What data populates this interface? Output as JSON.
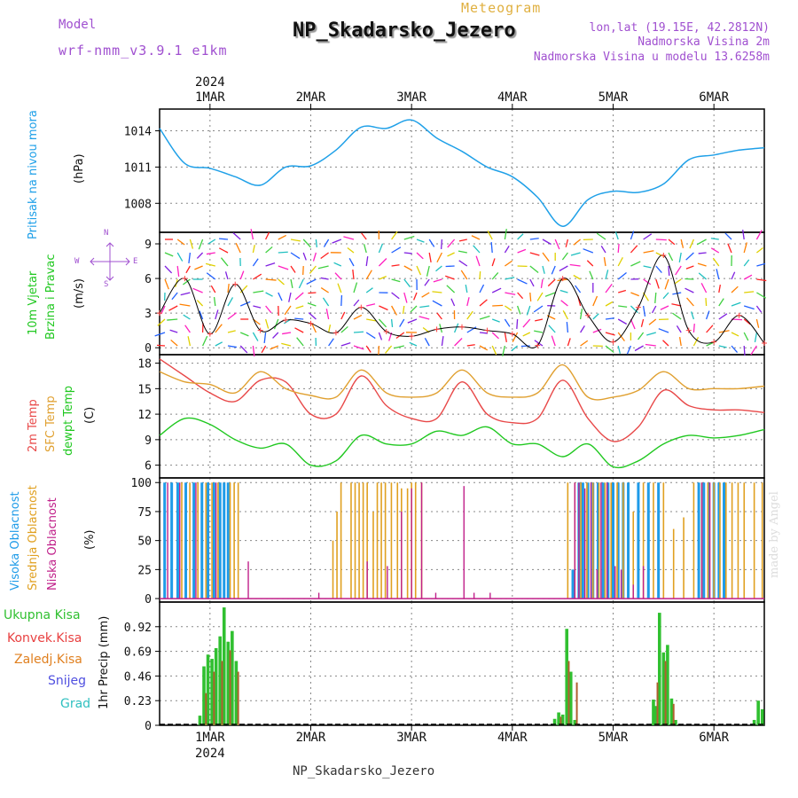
{
  "header": {
    "meteogram_label": "Meteogram",
    "model_label": "Model",
    "model_value": "wrf-nmm_v3.9.1 e1km",
    "station": "NP_Skadarsko_Jezero",
    "lonlat": "lon,lat (19.15E, 42.2812N)",
    "altitude": "Nadmorska Visina 2m",
    "model_altitude": "Nadmorska Visina u modelu 13.6258m",
    "footer": "NP_Skadarsko_Jezero",
    "made_by": "made by Angel"
  },
  "colors": {
    "pressure": "#1fa0e8",
    "temp2m": "#e84848",
    "sfc": "#e0a030",
    "dew": "#20c820",
    "high_cloud": "#1e9be8",
    "mid_cloud": "#e0a020",
    "low_cloud": "#c0208a",
    "total_precip": "#30c030",
    "conv_precip": "#e84040",
    "ice_precip": "#e08020",
    "snow": "#5050e0",
    "grad": "#30c0c0",
    "label_purple": "#a050d0"
  },
  "axes": {
    "date_ticks": [
      "1MAR",
      "2MAR",
      "3MAR",
      "4MAR",
      "5MAR",
      "6MAR"
    ],
    "year": "2024",
    "x_domain_days": [
      0.5,
      6.5
    ]
  },
  "chart_data": [
    {
      "type": "line",
      "panel": "pressure",
      "label": "Pritisak na nivou mora",
      "unit": "(hPa)",
      "yticks": [
        1008,
        1011,
        1014
      ],
      "ylim": [
        1005.6,
        1015.8
      ],
      "series": [
        {
          "name": "Pritisak na nivou mora",
          "x": [
            "2024-02-29 12:00",
            "2024-02-29 18:00",
            "2024-03-01 00:00",
            "2024-03-01 06:00",
            "2024-03-01 12:00",
            "2024-03-01 18:00",
            "2024-03-02 00:00",
            "2024-03-02 06:00",
            "2024-03-02 12:00",
            "2024-03-02 18:00",
            "2024-03-03 00:00",
            "2024-03-03 06:00",
            "2024-03-03 12:00",
            "2024-03-03 18:00",
            "2024-03-04 00:00",
            "2024-03-04 06:00",
            "2024-03-04 12:00",
            "2024-03-04 18:00",
            "2024-03-05 00:00",
            "2024-03-05 06:00",
            "2024-03-05 12:00",
            "2024-03-05 18:00",
            "2024-03-06 00:00",
            "2024-03-06 06:00",
            "2024-03-06 12:00"
          ],
          "values": [
            1014.2,
            1011.3,
            1010.9,
            1010.2,
            1009.5,
            1011.0,
            1011.1,
            1012.4,
            1014.3,
            1014.2,
            1014.9,
            1013.4,
            1012.3,
            1011.0,
            1010.2,
            1008.5,
            1006.1,
            1008.3,
            1009.0,
            1008.9,
            1009.6,
            1011.6,
            1012.0,
            1012.4,
            1012.6
          ]
        }
      ]
    },
    {
      "type": "line",
      "panel": "wind",
      "label_line1": "10m Vjetar",
      "label_line2": "Brzina i Pravac",
      "unit": "(m/s)",
      "compass": "N",
      "compass_w": "W",
      "compass_e": "E",
      "compass_s": "S",
      "yticks": [
        0,
        3,
        6,
        9
      ],
      "ylim": [
        -0.6,
        10
      ],
      "series": [
        {
          "name": "Brzina",
          "x": [
            "2024-02-29 12:00",
            "2024-02-29 18:00",
            "2024-03-01 00:00",
            "2024-03-01 06:00",
            "2024-03-01 12:00",
            "2024-03-01 18:00",
            "2024-03-02 00:00",
            "2024-03-02 06:00",
            "2024-03-02 12:00",
            "2024-03-02 18:00",
            "2024-03-03 00:00",
            "2024-03-03 06:00",
            "2024-03-03 12:00",
            "2024-03-03 18:00",
            "2024-03-04 00:00",
            "2024-03-04 06:00",
            "2024-03-04 12:00",
            "2024-03-04 18:00",
            "2024-03-05 00:00",
            "2024-03-05 06:00",
            "2024-03-05 12:00",
            "2024-03-05 18:00",
            "2024-03-06 00:00",
            "2024-03-06 06:00",
            "2024-03-06 12:00"
          ],
          "values": [
            3.0,
            6.0,
            1.2,
            5.5,
            1.5,
            2.4,
            2.1,
            1.3,
            3.5,
            1.4,
            1.0,
            1.6,
            1.8,
            1.5,
            1.2,
            0.2,
            6.0,
            2.8,
            0.5,
            3.5,
            8.0,
            1.5,
            0.5,
            2.8,
            0.4
          ]
        }
      ]
    },
    {
      "type": "line",
      "panel": "temperature",
      "label_temp": "2m Temp",
      "label_sfc": "SFC Temp",
      "label_dew": "dewpt Temp",
      "unit": "(C)",
      "yticks": [
        6,
        9,
        12,
        15,
        18
      ],
      "ylim": [
        4.5,
        19.0
      ],
      "x": [
        "2024-02-29 12:00",
        "2024-02-29 18:00",
        "2024-03-01 00:00",
        "2024-03-01 06:00",
        "2024-03-01 12:00",
        "2024-03-01 18:00",
        "2024-03-02 00:00",
        "2024-03-02 06:00",
        "2024-03-02 12:00",
        "2024-03-02 18:00",
        "2024-03-03 00:00",
        "2024-03-03 06:00",
        "2024-03-03 12:00",
        "2024-03-03 18:00",
        "2024-03-04 00:00",
        "2024-03-04 06:00",
        "2024-03-04 12:00",
        "2024-03-04 18:00",
        "2024-03-05 00:00",
        "2024-03-05 06:00",
        "2024-03-05 12:00",
        "2024-03-05 18:00",
        "2024-03-06 00:00",
        "2024-03-06 06:00",
        "2024-03-06 12:00"
      ],
      "series": [
        {
          "name": "2m Temp",
          "values": [
            18.5,
            16.5,
            14.5,
            13.5,
            16.0,
            15.8,
            12.0,
            12.0,
            16.5,
            13.0,
            11.5,
            11.5,
            15.8,
            12.0,
            11.0,
            11.5,
            16.0,
            11.5,
            8.8,
            10.5,
            14.8,
            13.0,
            12.5,
            12.5,
            12.2
          ]
        },
        {
          "name": "SFC Temp",
          "values": [
            17.0,
            15.8,
            15.5,
            14.5,
            17.0,
            15.0,
            14.2,
            14.0,
            17.2,
            14.5,
            14.0,
            14.5,
            17.2,
            14.5,
            14.0,
            14.5,
            17.8,
            14.0,
            14.0,
            14.8,
            17.0,
            15.0,
            15.0,
            15.0,
            15.3
          ]
        },
        {
          "name": "dewpt Temp",
          "values": [
            9.5,
            11.5,
            10.8,
            9.0,
            8.0,
            8.5,
            6.0,
            6.5,
            9.5,
            8.5,
            8.5,
            10.0,
            9.5,
            10.5,
            8.5,
            8.5,
            7.0,
            8.5,
            5.8,
            6.5,
            8.5,
            9.5,
            9.2,
            9.5,
            10.2
          ]
        }
      ]
    },
    {
      "type": "bar",
      "panel": "cloud",
      "label_high": "Visoka Oblacnost",
      "label_mid": "Srednja Oblacnost",
      "label_low": "Niska Oblacnost",
      "unit": "(%)",
      "yticks": [
        0,
        25,
        50,
        75,
        100
      ],
      "ylim": [
        -3,
        104
      ],
      "series": [
        {
          "name": "Visoka Oblacnost",
          "x_days": [
            0.55,
            0.62,
            0.68,
            0.76,
            0.84,
            0.92,
            0.98,
            1.04,
            1.1,
            1.14,
            1.18,
            4.6,
            4.66,
            4.7,
            4.75,
            4.8,
            4.85,
            4.9,
            4.95,
            5.0,
            5.05,
            5.1,
            5.15,
            5.25,
            5.35,
            5.45,
            5.85,
            5.9,
            5.95,
            6.0,
            6.05,
            6.1
          ],
          "values": [
            100,
            100,
            100,
            100,
            100,
            100,
            100,
            100,
            100,
            100,
            100,
            25,
            100,
            100,
            100,
            100,
            100,
            100,
            100,
            100,
            100,
            100,
            100,
            100,
            100,
            100,
            100,
            100,
            100,
            100,
            100,
            100
          ]
        },
        {
          "name": "Srednja Oblacnost",
          "x_days": [
            0.72,
            0.8,
            0.88,
            0.96,
            1.02,
            1.08,
            1.2,
            1.24,
            1.28,
            2.22,
            2.26,
            2.3,
            2.4,
            2.44,
            2.48,
            2.52,
            2.56,
            2.62,
            2.66,
            2.7,
            2.74,
            2.8,
            2.86,
            2.9,
            2.96,
            3.0,
            3.04,
            3.1,
            4.55,
            4.62,
            4.68,
            4.74,
            4.8,
            4.86,
            4.92,
            4.98,
            5.04,
            5.1,
            5.2,
            5.3,
            5.4,
            5.5,
            5.6,
            5.7,
            5.8,
            5.88,
            5.94,
            6.0,
            6.06,
            6.12,
            6.18,
            6.24,
            6.3,
            6.4,
            6.48
          ],
          "values": [
            100,
            100,
            100,
            100,
            100,
            100,
            100,
            100,
            100,
            50,
            75,
            100,
            100,
            100,
            100,
            100,
            100,
            75,
            100,
            100,
            100,
            100,
            100,
            95,
            95,
            100,
            100,
            100,
            100,
            100,
            100,
            100,
            100,
            100,
            100,
            100,
            100,
            100,
            75,
            100,
            100,
            100,
            60,
            70,
            100,
            100,
            100,
            100,
            100,
            100,
            100,
            100,
            100,
            100,
            100
          ]
        },
        {
          "name": "Niska Oblacnost",
          "x_days": [
            0.58,
            0.7,
            0.86,
            1.06,
            1.38,
            2.08,
            2.56,
            2.76,
            2.9,
            3.0,
            3.1,
            3.24,
            3.52,
            3.62,
            3.78,
            4.62,
            4.66,
            4.72,
            4.78,
            4.84,
            4.88,
            4.94,
            5.02,
            5.08,
            5.2,
            5.3,
            5.88,
            5.96
          ],
          "values": [
            100,
            100,
            100,
            100,
            32,
            5,
            32,
            28,
            75,
            95,
            100,
            5,
            97,
            5,
            5,
            100,
            100,
            95,
            100,
            25,
            100,
            100,
            28,
            25,
            12,
            28,
            100,
            100
          ]
        }
      ]
    },
    {
      "type": "bar",
      "panel": "precipitation",
      "label_total": "Ukupna Kisa",
      "label_conv": "Konvek.Kisa",
      "label_ice": "Zaledj.Kisa",
      "label_snow": "Snijeg",
      "label_grad": "Grad",
      "unit": "1hr Precip (mm)",
      "yticks": [
        0,
        0.23,
        0.46,
        0.69,
        0.92
      ],
      "ylim": [
        0,
        1.15
      ],
      "series": [
        {
          "name": "Ukupna Kisa",
          "x_days": [
            0.9,
            0.94,
            0.98,
            1.02,
            1.06,
            1.1,
            1.14,
            1.18,
            1.22,
            1.26,
            4.42,
            4.46,
            4.5,
            4.54,
            4.58,
            4.62,
            5.4,
            5.42,
            5.46,
            5.5,
            5.54,
            5.58,
            5.62,
            6.4,
            6.44,
            6.48
          ],
          "values": [
            0.09,
            0.55,
            0.66,
            0.62,
            0.72,
            0.83,
            1.1,
            0.78,
            0.88,
            0.6,
            0.06,
            0.12,
            0.1,
            0.9,
            0.5,
            0.05,
            0.24,
            0.18,
            1.05,
            0.68,
            0.75,
            0.25,
            0.05,
            0.05,
            0.23,
            0.15
          ]
        },
        {
          "name": "Konvek.Kisa",
          "x_days": [
            0.96,
            1.04,
            1.12,
            1.2,
            1.28,
            4.48,
            4.56,
            4.64,
            5.44,
            5.52,
            5.6
          ],
          "values": [
            0.3,
            0.5,
            0.6,
            0.7,
            0.5,
            0.08,
            0.6,
            0.4,
            0.4,
            0.6,
            0.2
          ]
        }
      ]
    }
  ]
}
